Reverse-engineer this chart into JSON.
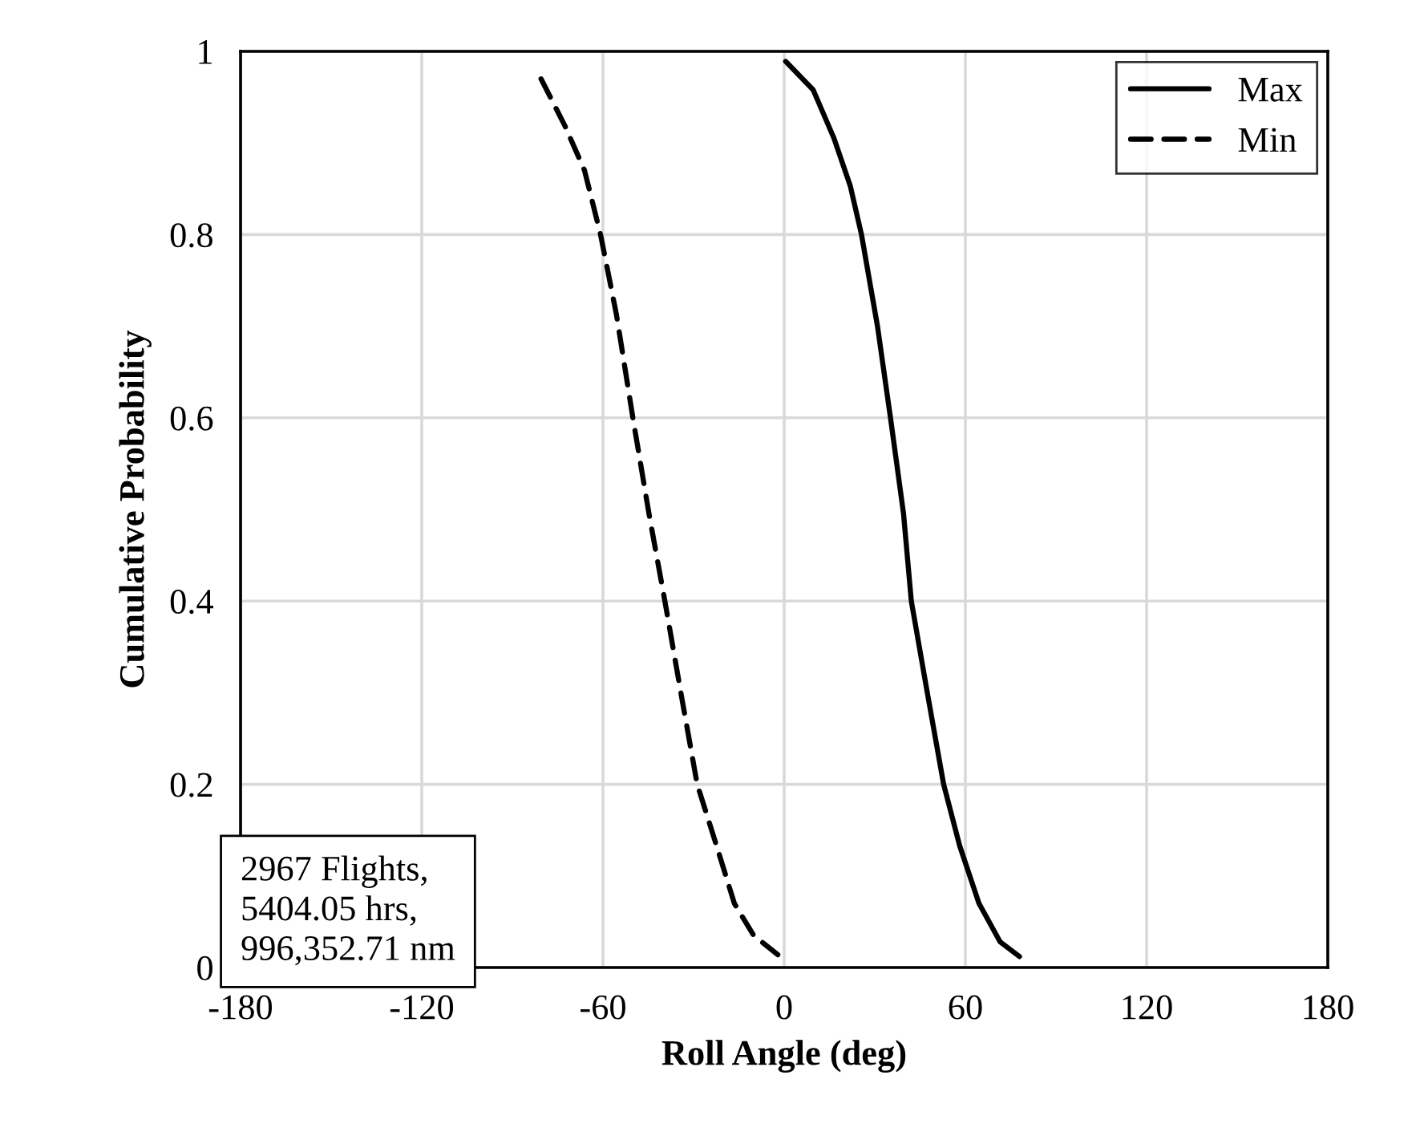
{
  "chart_data": {
    "type": "line",
    "xlabel": "Roll Angle (deg)",
    "ylabel": "Cumulative Probability",
    "xlim": [
      -180,
      180
    ],
    "xticks": [
      -180,
      -120,
      -60,
      0,
      60,
      120,
      180
    ],
    "ylim": [
      0,
      1
    ],
    "yticks": [
      0,
      0.2,
      0.4,
      0.6,
      0.8,
      1
    ],
    "grid": true,
    "legend": "top right",
    "marker": "none",
    "annotations": [
      "2967 Flights,\n5404.05 hrs,\n996,352.71 nm"
    ],
    "series": [
      {
        "name": "Max",
        "color": "#000000",
        "line_style": "solid",
        "x": [
          0.5,
          9.6,
          16.5,
          21.9,
          25.6,
          30.9,
          35.2,
          39.5,
          42.1,
          47.5,
          52.8,
          58.1,
          64.5,
          71.5,
          77.9
        ],
        "values": [
          0.989,
          0.958,
          0.905,
          0.853,
          0.8,
          0.7,
          0.6,
          0.496,
          0.4,
          0.298,
          0.2,
          0.133,
          0.07,
          0.028,
          0.012
        ]
      },
      {
        "name": "Min",
        "color": "#000000",
        "line_style": "dashed",
        "x": [
          -80.5,
          -72.5,
          -66.1,
          -60.8,
          -55.5,
          -50.1,
          -44.8,
          -39.5,
          -34.1,
          -28.8,
          -22.4,
          -16.5,
          -10.1,
          -2.1
        ],
        "values": [
          0.97,
          0.918,
          0.87,
          0.8,
          0.712,
          0.6,
          0.496,
          0.4,
          0.298,
          0.2,
          0.133,
          0.07,
          0.035,
          0.014
        ]
      }
    ]
  }
}
